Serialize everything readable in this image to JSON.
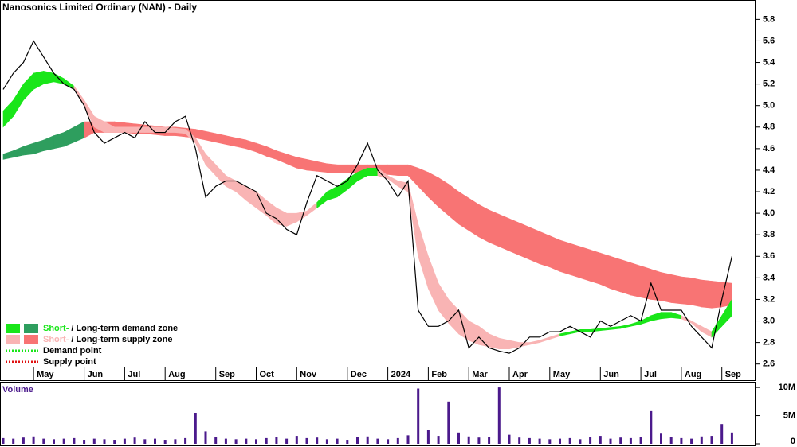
{
  "chart_data": {
    "type": "line",
    "title": "Nanosonics Limited Ordinary (NAN) - Daily",
    "categories": [
      null,
      null,
      null,
      "May",
      null,
      null,
      null,
      null,
      "Jun",
      null,
      null,
      null,
      "Jul",
      null,
      null,
      null,
      "Aug",
      null,
      null,
      null,
      null,
      "Sep",
      null,
      null,
      null,
      "Oct",
      null,
      null,
      null,
      "Nov",
      null,
      null,
      null,
      null,
      "Dec",
      null,
      null,
      null,
      "2024",
      null,
      null,
      null,
      "Feb",
      null,
      null,
      null,
      "Mar",
      null,
      null,
      null,
      "Apr",
      null,
      null,
      null,
      "May",
      null,
      null,
      null,
      null,
      "Jun",
      null,
      null,
      null,
      "Jul",
      null,
      null,
      null,
      "Aug",
      null,
      null,
      null,
      "Sep",
      null
    ],
    "series": [
      {
        "color": "#000000",
        "values": [
          5.15,
          5.3,
          5.4,
          5.6,
          5.45,
          5.3,
          5.2,
          5.15,
          5.0,
          4.75,
          4.65,
          4.7,
          4.75,
          4.7,
          4.85,
          4.75,
          4.75,
          4.85,
          4.9,
          4.6,
          4.15,
          4.25,
          4.3,
          4.3,
          4.25,
          4.2,
          4.0,
          3.95,
          3.85,
          3.8,
          4.1,
          4.35,
          4.3,
          4.25,
          4.3,
          4.45,
          4.65,
          4.4,
          4.3,
          4.15,
          4.3,
          3.1,
          2.95,
          2.95,
          3.0,
          3.1,
          2.75,
          2.85,
          2.75,
          2.72,
          2.7,
          2.75,
          2.85,
          2.85,
          2.9,
          2.9,
          2.95,
          2.9,
          2.85,
          3.0,
          2.95,
          3.0,
          3.05,
          3.0,
          3.35,
          3.1,
          3.1,
          3.1,
          2.95,
          2.85,
          2.75,
          3.2,
          3.6
        ]
      }
    ],
    "long_zone": {
      "colors": {
        "demand": "#2e9e5e",
        "supply": "#f87474"
      },
      "upper": [
        4.55,
        4.58,
        4.62,
        4.65,
        4.68,
        4.72,
        4.75,
        4.8,
        4.85,
        4.85,
        4.85,
        4.85,
        4.84,
        4.83,
        4.82,
        4.81,
        4.8,
        4.8,
        4.79,
        4.78,
        4.76,
        4.74,
        4.72,
        4.7,
        4.68,
        4.65,
        4.62,
        4.58,
        4.55,
        4.52,
        4.5,
        4.48,
        4.46,
        4.45,
        4.45,
        4.45,
        4.45,
        4.45,
        4.45,
        4.45,
        4.45,
        4.42,
        4.38,
        4.33,
        4.27,
        4.2,
        4.14,
        4.08,
        4.03,
        3.99,
        3.95,
        3.91,
        3.87,
        3.83,
        3.79,
        3.75,
        3.72,
        3.69,
        3.66,
        3.63,
        3.6,
        3.57,
        3.54,
        3.51,
        3.48,
        3.45,
        3.43,
        3.41,
        3.4,
        3.38,
        3.37,
        3.36,
        3.35
      ],
      "lower": [
        4.5,
        4.52,
        4.54,
        4.55,
        4.58,
        4.6,
        4.62,
        4.66,
        4.7,
        4.75,
        4.75,
        4.75,
        4.75,
        4.74,
        4.74,
        4.73,
        4.72,
        4.72,
        4.71,
        4.7,
        4.68,
        4.66,
        4.64,
        4.62,
        4.6,
        4.57,
        4.53,
        4.5,
        4.46,
        4.42,
        4.4,
        4.39,
        4.38,
        4.38,
        4.38,
        4.38,
        4.38,
        4.37,
        4.36,
        4.35,
        4.35,
        4.25,
        4.15,
        4.06,
        3.98,
        3.9,
        3.84,
        3.78,
        3.73,
        3.69,
        3.65,
        3.61,
        3.57,
        3.53,
        3.5,
        3.46,
        3.43,
        3.4,
        3.37,
        3.34,
        3.3,
        3.27,
        3.24,
        3.22,
        3.2,
        3.19,
        3.17,
        3.16,
        3.15,
        3.13,
        3.12,
        3.13,
        3.15
      ],
      "state": [
        "demand",
        "demand",
        "demand",
        "demand",
        "demand",
        "demand",
        "demand",
        "demand",
        "demand",
        "supply",
        "supply",
        "supply",
        "supply",
        "supply",
        "supply",
        "supply",
        "supply",
        "supply",
        "supply",
        "supply",
        "supply",
        "supply",
        "supply",
        "supply",
        "supply",
        "supply",
        "supply",
        "supply",
        "supply",
        "supply",
        "supply",
        "supply",
        "supply",
        "supply",
        "supply",
        "supply",
        "supply",
        "supply",
        "supply",
        "supply",
        "supply",
        "supply",
        "supply",
        "supply",
        "supply",
        "supply",
        "supply",
        "supply",
        "supply",
        "supply",
        "supply",
        "supply",
        "supply",
        "supply",
        "supply",
        "supply",
        "supply",
        "supply",
        "supply",
        "supply",
        "supply",
        "supply",
        "supply",
        "supply",
        "supply",
        "supply",
        "supply",
        "supply",
        "supply",
        "supply",
        "supply",
        "supply",
        "supply"
      ]
    },
    "short_zone": {
      "colors": {
        "demand": "#19e619",
        "supply": "#f9b4b4"
      },
      "upper": [
        4.95,
        5.05,
        5.2,
        5.3,
        5.32,
        5.3,
        5.25,
        5.18,
        5.05,
        4.9,
        4.85,
        4.8,
        4.8,
        4.8,
        4.8,
        4.8,
        4.8,
        4.79,
        4.78,
        4.7,
        4.55,
        4.45,
        4.35,
        4.3,
        4.25,
        4.2,
        4.12,
        4.05,
        4.0,
        4.0,
        4.02,
        4.1,
        4.2,
        4.25,
        4.32,
        4.38,
        4.42,
        4.42,
        4.35,
        4.3,
        4.28,
        3.9,
        3.6,
        3.35,
        3.2,
        3.1,
        3.0,
        2.95,
        2.88,
        2.84,
        2.82,
        2.8,
        2.8,
        2.82,
        2.85,
        2.88,
        2.9,
        2.92,
        2.92,
        2.93,
        2.94,
        2.95,
        2.97,
        3.0,
        3.05,
        3.08,
        3.08,
        3.05,
        3.0,
        2.95,
        2.9,
        3.05,
        3.2
      ],
      "lower": [
        4.8,
        4.9,
        5.05,
        5.15,
        5.2,
        5.22,
        5.2,
        5.15,
        5.0,
        4.8,
        4.75,
        4.75,
        4.75,
        4.75,
        4.75,
        4.75,
        4.75,
        4.75,
        4.74,
        4.65,
        4.45,
        4.35,
        4.25,
        4.2,
        4.12,
        4.05,
        3.98,
        3.9,
        3.88,
        3.92,
        3.98,
        4.05,
        4.12,
        4.15,
        4.22,
        4.3,
        4.35,
        4.35,
        4.32,
        4.25,
        4.2,
        3.6,
        3.3,
        3.1,
        2.98,
        2.88,
        2.82,
        2.78,
        2.76,
        2.74,
        2.74,
        2.76,
        2.78,
        2.8,
        2.83,
        2.86,
        2.88,
        2.9,
        2.9,
        2.91,
        2.92,
        2.93,
        2.95,
        2.97,
        3.0,
        3.02,
        3.03,
        3.02,
        2.98,
        2.9,
        2.85,
        2.95,
        3.05
      ],
      "state": [
        "demand",
        "demand",
        "demand",
        "demand",
        "demand",
        "demand",
        "demand",
        "demand",
        "supply",
        "supply",
        "supply",
        "supply",
        "supply",
        "supply",
        "supply",
        "supply",
        "supply",
        "supply",
        "supply",
        "supply",
        "supply",
        "supply",
        "supply",
        "supply",
        "supply",
        "supply",
        "supply",
        "supply",
        "supply",
        "supply",
        "supply",
        "supply",
        "demand",
        "demand",
        "demand",
        "demand",
        "demand",
        "demand",
        "supply",
        "supply",
        "supply",
        "supply",
        "supply",
        "supply",
        "supply",
        "supply",
        "supply",
        "supply",
        "supply",
        "supply",
        "supply",
        "supply",
        "supply",
        "supply",
        "supply",
        "supply",
        "demand",
        "demand",
        "demand",
        "demand",
        "demand",
        "demand",
        "demand",
        "demand",
        "demand",
        "demand",
        "demand",
        "demand",
        "supply",
        "supply",
        "supply",
        "demand",
        "demand"
      ]
    },
    "ylim": [
      2.45,
      5.98
    ],
    "yticks": [
      2.6,
      2.8,
      {
        "value": 3,
        "label": "3.0"
      },
      3.2,
      3.4,
      3.6,
      3.8,
      {
        "value": 4,
        "label": "4.0"
      },
      4.2,
      4.4,
      4.6,
      4.8,
      {
        "value": 5,
        "label": "5.0"
      },
      5.2,
      5.4,
      5.6,
      5.8
    ],
    "legend": [
      {
        "swatches": [
          "#19e619",
          "#2e9e5e"
        ],
        "parts": [
          {
            "text": "Short-",
            "color": "#19e619"
          },
          {
            "text": "/",
            "color": "#000000"
          },
          {
            "text": "Long-term demand zone",
            "color": "#000000"
          }
        ]
      },
      {
        "swatches": [
          "#f9b4b4",
          "#f87474"
        ],
        "parts": [
          {
            "text": "Short-",
            "color": "#f9b4b4"
          },
          {
            "text": "/",
            "color": "#000000"
          },
          {
            "text": "Long-term supply zone",
            "color": "#000000"
          }
        ]
      },
      {
        "dots": "#19e619",
        "parts": [
          {
            "text": "Demand point",
            "color": "#000000"
          }
        ]
      },
      {
        "dots": "#e01010",
        "parts": [
          {
            "text": "Supply point",
            "color": "#000000"
          }
        ]
      }
    ],
    "volume": {
      "title": "Volume",
      "color": "#4b1a8c",
      "values": [
        1000000,
        900000,
        1100000,
        1300000,
        900000,
        800000,
        900000,
        1000000,
        700000,
        900000,
        800000,
        700000,
        900000,
        1100000,
        800000,
        900000,
        700000,
        800000,
        1000000,
        5500000,
        2200000,
        1200000,
        900000,
        800000,
        900000,
        800000,
        1000000,
        1200000,
        900000,
        1400000,
        1000000,
        1100000,
        800000,
        900000,
        700000,
        1200000,
        1300000,
        900000,
        800000,
        1000000,
        1500000,
        9800000,
        2500000,
        1400000,
        7500000,
        2000000,
        1300000,
        1100000,
        1200000,
        10000000,
        1600000,
        1100000,
        1000000,
        900000,
        800000,
        900000,
        1000000,
        800000,
        1200000,
        1400000,
        900000,
        1100000,
        1000000,
        1200000,
        5800000,
        1800000,
        1200000,
        1000000,
        900000,
        1300000,
        1400000,
        3500000,
        2000000
      ],
      "ylim": [
        0,
        11000000
      ],
      "yticks": [
        {
          "value": 0,
          "label": "0"
        },
        {
          "value": 5000000,
          "label": "5M"
        },
        {
          "value": 10000000,
          "label": "10M"
        }
      ]
    }
  }
}
